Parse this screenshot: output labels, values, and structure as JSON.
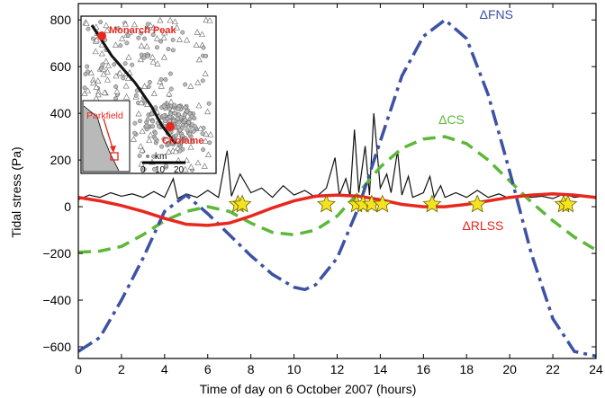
{
  "chart_data": {
    "type": "line",
    "xlabel": "Time of day on 6 October 2007 (hours)",
    "ylabel": "Tidal stress (Pa)",
    "xlim": [
      0,
      24
    ],
    "ylim": [
      -650,
      870
    ],
    "x_ticks": [
      0,
      2,
      4,
      6,
      8,
      10,
      12,
      14,
      16,
      18,
      20,
      22,
      24
    ],
    "y_ticks": [
      -600,
      -400,
      -200,
      0,
      200,
      400,
      600,
      800
    ],
    "grid": false,
    "series": [
      {
        "name": "ΔFNS",
        "color": "#3d52a3",
        "style": "dashdot",
        "label_at": [
          18.6,
          805
        ],
        "x": [
          0,
          1,
          2,
          3,
          4,
          5,
          6,
          7,
          8,
          9,
          10,
          10.5,
          11,
          12,
          13,
          14,
          15,
          16,
          17,
          18,
          19,
          20,
          21,
          22,
          23,
          24
        ],
        "y": [
          -620,
          -560,
          -400,
          -220,
          -20,
          50,
          -30,
          -120,
          -210,
          -290,
          -345,
          -355,
          -335,
          -220,
          0,
          280,
          560,
          730,
          800,
          720,
          480,
          150,
          -200,
          -480,
          -620,
          -640
        ]
      },
      {
        "name": "ΔCS",
        "color": "#5db83a",
        "style": "dashed",
        "label_at": [
          16.7,
          355
        ],
        "x": [
          0,
          1,
          2,
          3,
          4,
          5,
          6,
          7,
          8,
          9,
          10,
          11,
          12,
          13,
          14,
          15,
          16,
          17,
          18,
          19,
          20,
          21,
          22,
          23,
          24
        ],
        "y": [
          -195,
          -190,
          -170,
          -120,
          -60,
          -20,
          0,
          -20,
          -70,
          -110,
          -120,
          -100,
          -40,
          60,
          170,
          250,
          290,
          300,
          270,
          200,
          110,
          20,
          -60,
          -130,
          -185
        ]
      },
      {
        "name": "ΔRLSS",
        "color": "#e8281f",
        "style": "solid",
        "label_at": [
          17.8,
          -100
        ],
        "x": [
          0,
          1,
          2,
          3,
          4,
          5,
          6,
          7,
          8,
          9,
          10,
          11,
          12,
          13,
          14,
          15,
          16,
          17,
          18,
          19,
          20,
          21,
          22,
          23,
          24
        ],
        "y": [
          40,
          25,
          5,
          -20,
          -50,
          -75,
          -80,
          -70,
          -40,
          -5,
          25,
          45,
          50,
          45,
          30,
          10,
          0,
          0,
          10,
          25,
          40,
          50,
          55,
          50,
          40
        ]
      },
      {
        "name": "",
        "color": "#111111",
        "style": "solid",
        "x": [
          0,
          0.5,
          1,
          1.5,
          2,
          2.5,
          3,
          3.5,
          4,
          4.4,
          4.6,
          5,
          5.5,
          6,
          6.5,
          6.9,
          7.1,
          7.5,
          8,
          8.5,
          9,
          9.5,
          10,
          10.5,
          11,
          11.5,
          11.9,
          12.1,
          12.4,
          12.6,
          12.8,
          13,
          13.3,
          13.5,
          13.7,
          14,
          14.3,
          14.5,
          14.8,
          15,
          15.3,
          15.5,
          16,
          16.3,
          16.5,
          16.8,
          17,
          17.5,
          18,
          18.5,
          19,
          19.5,
          20,
          20.5,
          21,
          21.5,
          22,
          22.5,
          23,
          23.5,
          24
        ],
        "y": [
          30,
          50,
          40,
          60,
          45,
          55,
          40,
          65,
          40,
          120,
          35,
          55,
          40,
          70,
          40,
          240,
          45,
          140,
          60,
          80,
          40,
          90,
          50,
          70,
          40,
          80,
          210,
          50,
          120,
          45,
          330,
          60,
          260,
          50,
          400,
          80,
          140,
          60,
          240,
          50,
          130,
          40,
          60,
          130,
          40,
          90,
          40,
          60,
          40,
          70,
          40,
          55,
          35,
          50,
          40,
          45,
          35,
          55,
          40,
          45,
          35
        ]
      }
    ],
    "stars": [
      7.4,
      7.6,
      11.5,
      12.9,
      13.2,
      13.6,
      14.1,
      16.4,
      18.5,
      22.5,
      22.7
    ],
    "inset": {
      "labels": [
        "Monarch Peak",
        "Parkfield",
        "Cholame"
      ],
      "scale_unit": "km",
      "scale_ticks": [
        "0",
        "10",
        "20"
      ]
    }
  }
}
